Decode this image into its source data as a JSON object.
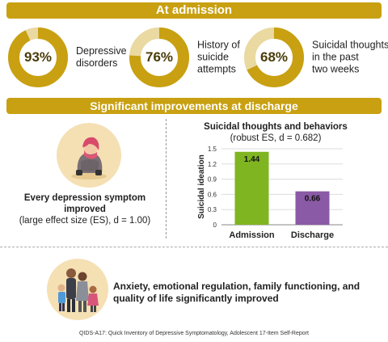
{
  "header": {
    "admission_label": "At admission",
    "discharge_label": "Significant improvements at discharge"
  },
  "admission_stats": [
    {
      "percent": "93%",
      "value": 93,
      "text": "Depressive\ndisorders"
    },
    {
      "percent": "76%",
      "value": 76,
      "text": "History of\nsuicide\nattempts"
    },
    {
      "percent": "68%",
      "value": 68,
      "text": "Suicidal thoughts\nin the past\ntwo weeks"
    }
  ],
  "colors": {
    "gold": "#c8a011",
    "ring_track": "#ead9a0",
    "green_bar": "#7fb520",
    "purple_bar": "#8b5aa6",
    "circle_bg": "#f5e0b4"
  },
  "depression": {
    "title": "Every depression symptom improved",
    "subtitle": "(large effect size (ES), d = 1.00)",
    "icon": "sad-girl-icon"
  },
  "chart_data": {
    "type": "bar",
    "title": "Suicidal thoughts and behaviors",
    "subtitle": "(robust ES, d = 0.682)",
    "categories": [
      "Admission",
      "Discharge"
    ],
    "values": [
      1.44,
      0.66
    ],
    "data_labels": [
      "1.44",
      "0.66"
    ],
    "ylabel": "Suicidal ideation",
    "ylim": [
      0,
      1.5
    ],
    "yticks": [
      "0",
      "0.3",
      "0.6",
      "0.9",
      "1.2",
      "1.5"
    ],
    "grid": true
  },
  "family": {
    "text": "Anxiety, emotional regulation, family functioning, and quality of life significantly improved",
    "icon": "family-icon"
  },
  "footnote": "QIDS-A17: Quick Inventory of Depressive Symptomatology, Adolescent 17-Item Self-Report"
}
